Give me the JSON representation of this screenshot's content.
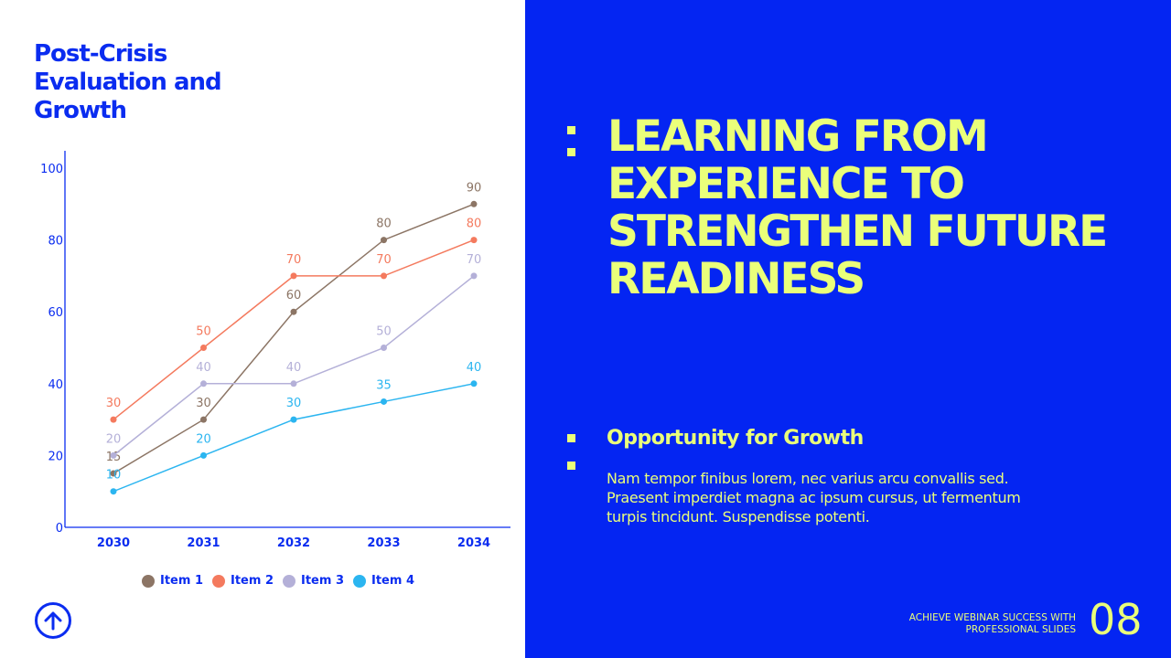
{
  "slide": {
    "title": "Post-Crisis Evaluation and Growth",
    "main_title": "LEARNING FROM EXPERIENCE TO STRENGTHEN FUTURE READINESS",
    "subtitle": "Opportunity for Growth",
    "body": "Nam tempor finibus lorem, nec varius arcu convallis sed. Praesent imperdiet magna ac ipsum cursus, ut fermentum turpis tincidunt. Suspendisse potenti.",
    "footer": "ACHIEVE WEBINAR SUCCESS WITH PROFESSIONAL SLIDES",
    "page_number": "08",
    "icons": {
      "nav": "arrow-up-circle-icon"
    },
    "colors": {
      "brand_blue": "#0425f2",
      "accent_yellow": "#eaff7a"
    }
  },
  "chart_data": {
    "type": "line",
    "categories": [
      "2030",
      "2031",
      "2032",
      "2033",
      "2034"
    ],
    "ylim": [
      0,
      100
    ],
    "yticks": [
      "0",
      "20",
      "40",
      "60",
      "80",
      "100"
    ],
    "grid": false,
    "legend": "bottom",
    "data_labels": true,
    "series": [
      {
        "name": "Item 1",
        "color": "#8c7565",
        "values": [
          15,
          30,
          60,
          80,
          90
        ]
      },
      {
        "name": "Item 2",
        "color": "#f47a5e",
        "values": [
          30,
          50,
          70,
          70,
          80
        ]
      },
      {
        "name": "Item 3",
        "color": "#b4b0d8",
        "values": [
          20,
          40,
          40,
          50,
          70
        ]
      },
      {
        "name": "Item 4",
        "color": "#2bb5f0",
        "values": [
          10,
          20,
          30,
          35,
          40
        ]
      }
    ]
  }
}
